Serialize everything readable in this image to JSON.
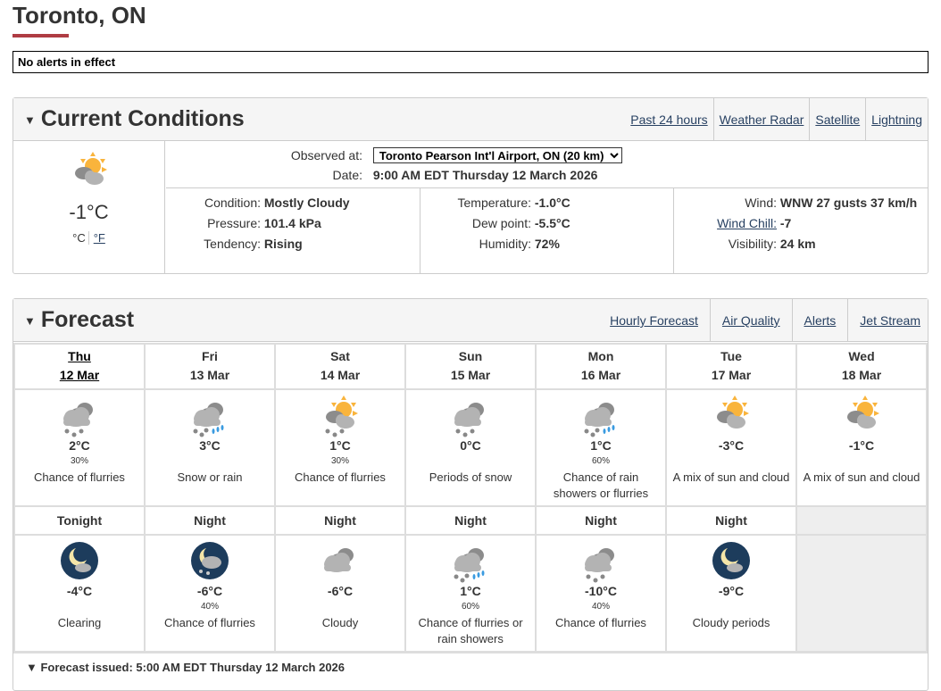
{
  "title": "Toronto, ON",
  "alert": "No alerts in effect",
  "current": {
    "heading": "Current Conditions",
    "links": [
      "Past 24 hours",
      "Weather Radar",
      "Satellite",
      "Lightning"
    ],
    "icon": "sun-cloud",
    "temp": "-1°C",
    "unit_c": "°C",
    "unit_f": "°F",
    "observed_label": "Observed at:",
    "observed_value": "Toronto Pearson Int'l Airport, ON (20 km)",
    "date_label": "Date:",
    "date_value": "9:00 AM EDT Thursday 12 March 2026",
    "condition_label": "Condition:",
    "condition": "Mostly Cloudy",
    "pressure_label": "Pressure:",
    "pressure": "101.4 kPa",
    "tendency_label": "Tendency:",
    "tendency": "Rising",
    "temperature_label": "Temperature:",
    "temperature": "-1.0°C",
    "dewpoint_label": "Dew point:",
    "dewpoint": "-5.5°C",
    "humidity_label": "Humidity:",
    "humidity": "72%",
    "wind_label": "Wind:",
    "wind": "WNW 27 gusts 37 km/h",
    "windchill_label": "Wind Chill:",
    "windchill": "-7",
    "visibility_label": "Visibility:",
    "visibility": "24 km"
  },
  "forecast": {
    "heading": "Forecast",
    "links": [
      "Hourly Forecast",
      "Air Quality",
      "Alerts",
      "Jet Stream"
    ],
    "days": [
      {
        "day": "Thu",
        "date": "12 Mar",
        "icon": "cloud-snow",
        "temp": "2°C",
        "pop": "30%",
        "summary": "Chance of flurries"
      },
      {
        "day": "Fri",
        "date": "13 Mar",
        "icon": "cloud-snow-rain",
        "temp": "3°C",
        "pop": "",
        "summary": "Snow or rain"
      },
      {
        "day": "Sat",
        "date": "14 Mar",
        "icon": "sun-cloud-snow",
        "temp": "1°C",
        "pop": "30%",
        "summary": "Chance of flurries"
      },
      {
        "day": "Sun",
        "date": "15 Mar",
        "icon": "cloud-snow",
        "temp": "0°C",
        "pop": "",
        "summary": "Periods of snow"
      },
      {
        "day": "Mon",
        "date": "16 Mar",
        "icon": "cloud-snow-rain",
        "temp": "1°C",
        "pop": "60%",
        "summary": "Chance of rain showers or flurries"
      },
      {
        "day": "Tue",
        "date": "17 Mar",
        "icon": "sun-cloud",
        "temp": "-3°C",
        "pop": "",
        "summary": "A mix of sun and cloud"
      },
      {
        "day": "Wed",
        "date": "18 Mar",
        "icon": "sun-cloud",
        "temp": "-1°C",
        "pop": "",
        "summary": "A mix of sun and cloud"
      }
    ],
    "nights": [
      {
        "label": "Tonight",
        "icon": "moon-cloud",
        "temp": "-4°C",
        "pop": "",
        "summary": "Clearing"
      },
      {
        "label": "Night",
        "icon": "moon-cloud-snow",
        "temp": "-6°C",
        "pop": "40%",
        "summary": "Chance of flurries"
      },
      {
        "label": "Night",
        "icon": "cloud",
        "temp": "-6°C",
        "pop": "",
        "summary": "Cloudy"
      },
      {
        "label": "Night",
        "icon": "cloud-snow-rain",
        "temp": "1°C",
        "pop": "60%",
        "summary": "Chance of flurries or rain showers"
      },
      {
        "label": "Night",
        "icon": "cloud-snow",
        "temp": "-10°C",
        "pop": "40%",
        "summary": "Chance of flurries"
      },
      {
        "label": "Night",
        "icon": "moon-cloud",
        "temp": "-9°C",
        "pop": "",
        "summary": "Cloudy periods"
      }
    ],
    "issued": "Forecast issued: 5:00 AM EDT Thursday 12 March 2026"
  }
}
